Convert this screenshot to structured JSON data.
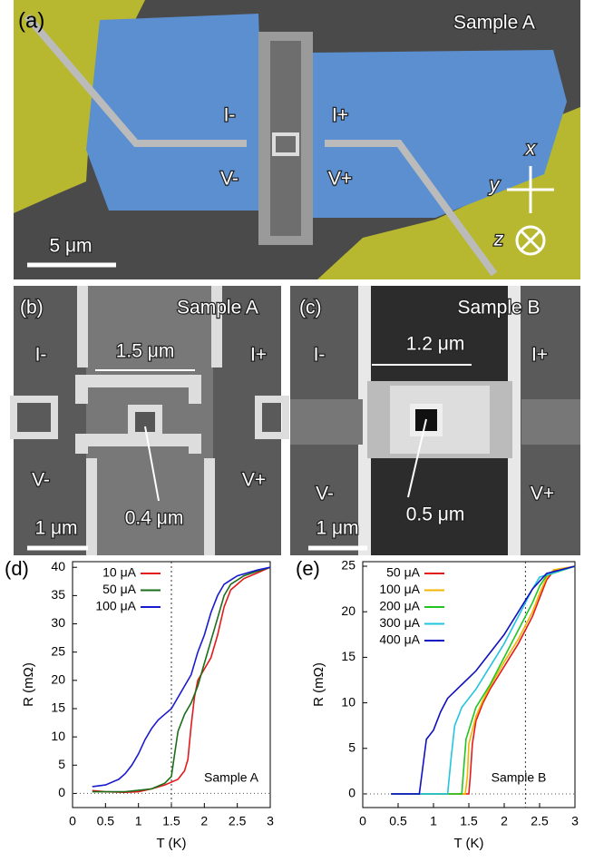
{
  "panels": [
    {
      "label": "(a)",
      "sample": "Sample A",
      "i_minus": "I-",
      "i_plus": "I+",
      "v_minus": "V-",
      "v_plus": "V+",
      "scale": "5 μm",
      "axis_x": "x",
      "axis_y": "y",
      "axis_z": "z"
    },
    {
      "label": "(b)",
      "sample": "Sample A",
      "i_minus": "I-",
      "i_plus": "I+",
      "v_minus": "V-",
      "v_plus": "V+",
      "width": "1.5 μm",
      "hole": "0.4 μm",
      "scale": "1 μm"
    },
    {
      "label": "(c)",
      "sample": "Sample B",
      "i_minus": "I-",
      "i_plus": "I+",
      "v_minus": "V-",
      "v_plus": "V+",
      "width": "1.2 μm",
      "hole": "0.5 μm",
      "scale": "1 μm"
    }
  ],
  "chart_data": [
    {
      "type": "line",
      "label": "(d)",
      "xlabel": "T (K)",
      "ylabel": "R (mΩ)",
      "annotation": "Sample A",
      "ref_line_x": 1.5,
      "xlim": [
        0,
        3
      ],
      "ylim": [
        -2.5,
        41
      ],
      "xticks": [
        0,
        0.5,
        1,
        1.5,
        2,
        2.5,
        3
      ],
      "yticks": [
        0,
        5,
        10,
        15,
        20,
        25,
        30,
        35,
        40
      ],
      "legend": "upper left",
      "series": [
        {
          "name": "10 μA",
          "color": "#e31a1c",
          "x": [
            0.3,
            0.5,
            0.8,
            1.0,
            1.2,
            1.4,
            1.6,
            1.7,
            1.75,
            1.8,
            1.85,
            1.9,
            2.0,
            2.1,
            2.2,
            2.3,
            2.4,
            2.6,
            2.8,
            3.0
          ],
          "values": [
            0.5,
            0.3,
            0.2,
            0.3,
            0.8,
            1.5,
            2.5,
            4,
            6,
            12,
            17,
            20,
            22,
            24,
            28,
            33,
            36,
            38,
            39,
            40
          ]
        },
        {
          "name": "50 μA",
          "color": "#1a6e1a",
          "x": [
            0.3,
            0.8,
            1.2,
            1.4,
            1.5,
            1.55,
            1.6,
            1.7,
            1.8,
            1.9,
            2.0,
            2.1,
            2.2,
            2.3,
            2.4,
            2.6,
            2.8,
            3.0
          ],
          "values": [
            0.3,
            0.3,
            0.8,
            1.8,
            3,
            7,
            11,
            14,
            16,
            19,
            23,
            27,
            31,
            35,
            37,
            38.5,
            39.3,
            40
          ]
        },
        {
          "name": "100 μA",
          "color": "#1a1ad0",
          "x": [
            0.3,
            0.5,
            0.7,
            0.8,
            0.9,
            1.0,
            1.1,
            1.2,
            1.3,
            1.4,
            1.5,
            1.6,
            1.7,
            1.8,
            1.9,
            2.0,
            2.1,
            2.2,
            2.3,
            2.5,
            2.8,
            3.0
          ],
          "values": [
            1.2,
            1.5,
            2.5,
            3.5,
            5,
            7,
            9.5,
            11.5,
            13,
            14,
            15,
            17,
            19,
            21,
            25,
            28,
            32,
            35,
            37,
            38.5,
            39.5,
            40
          ]
        }
      ]
    },
    {
      "type": "line",
      "label": "(e)",
      "xlabel": "T (K)",
      "ylabel": "R (mΩ)",
      "annotation": "Sample B",
      "ref_line_x": 2.3,
      "xlim": [
        0,
        3
      ],
      "ylim": [
        -1.5,
        25.5
      ],
      "xticks": [
        0,
        0.5,
        1,
        1.5,
        2,
        2.5,
        3
      ],
      "yticks": [
        0,
        5,
        10,
        15,
        20,
        25
      ],
      "legend": "upper left",
      "series": [
        {
          "name": "50 μA",
          "color": "#e31a1c",
          "x": [
            0.4,
            1.5,
            1.52,
            1.55,
            1.6,
            1.7,
            1.8,
            2.0,
            2.2,
            2.4,
            2.5,
            2.6,
            2.7,
            3.0
          ],
          "values": [
            0,
            0,
            2,
            5.5,
            8,
            10,
            11.5,
            14,
            16.5,
            19.5,
            21.5,
            23.5,
            24.5,
            25
          ]
        },
        {
          "name": "100 μA",
          "color": "#f2b400",
          "x": [
            0.4,
            1.45,
            1.48,
            1.5,
            1.6,
            1.7,
            1.8,
            2.0,
            2.2,
            2.4,
            2.5,
            2.6,
            2.7,
            3.0
          ],
          "values": [
            0,
            0,
            2,
            5.5,
            8.5,
            10.3,
            11.8,
            14.5,
            17,
            20,
            22,
            23.8,
            24.6,
            25
          ]
        },
        {
          "name": "200 μA",
          "color": "#22c422",
          "x": [
            0.4,
            1.4,
            1.43,
            1.46,
            1.6,
            1.8,
            2.0,
            2.2,
            2.4,
            2.5,
            2.6,
            3.0
          ],
          "values": [
            0,
            0,
            3,
            6,
            9.5,
            12,
            15,
            18,
            21,
            22.8,
            24,
            25
          ]
        },
        {
          "name": "300 μA",
          "color": "#22c4e0",
          "x": [
            0.4,
            1.2,
            1.25,
            1.3,
            1.4,
            1.6,
            1.8,
            2.0,
            2.2,
            2.4,
            2.5,
            3.0
          ],
          "values": [
            0,
            0,
            4,
            7.5,
            9.5,
            11.5,
            14,
            16.5,
            19.5,
            22.5,
            23.8,
            25
          ]
        },
        {
          "name": "400 μA",
          "color": "#1010c0",
          "x": [
            0.4,
            0.8,
            0.85,
            0.9,
            1.0,
            1.1,
            1.2,
            1.4,
            1.6,
            1.8,
            2.0,
            2.2,
            2.4,
            2.6,
            3.0
          ],
          "values": [
            0,
            0,
            3,
            6,
            7,
            9,
            10.5,
            12,
            13.5,
            15.5,
            17.5,
            20,
            22.5,
            24.2,
            25
          ]
        }
      ]
    }
  ]
}
